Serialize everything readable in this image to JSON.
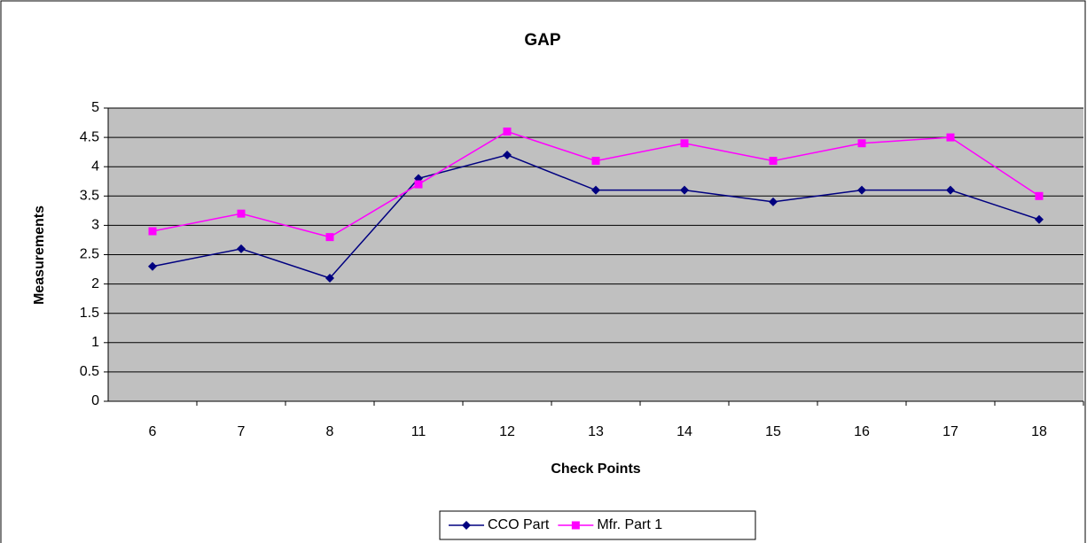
{
  "chart_data": {
    "type": "line",
    "title": "GAP",
    "x_label": "Check Points",
    "y_label": "Measurements",
    "categories": [
      "6",
      "7",
      "8",
      "11",
      "12",
      "13",
      "14",
      "15",
      "16",
      "17",
      "18"
    ],
    "series": [
      {
        "name": "CCO Part",
        "color": "#000080",
        "marker": "diamond",
        "values": [
          2.3,
          2.6,
          2.1,
          3.8,
          4.2,
          3.6,
          3.6,
          3.4,
          3.6,
          3.6,
          3.1
        ]
      },
      {
        "name": "Mfr. Part 1",
        "color": "#ff00ff",
        "marker": "square",
        "values": [
          2.9,
          3.2,
          2.8,
          3.7,
          4.6,
          4.1,
          4.4,
          4.1,
          4.4,
          4.5,
          3.5
        ]
      }
    ],
    "ylim": [
      0,
      5
    ],
    "yticks": [
      0,
      0.5,
      1,
      1.5,
      2,
      2.5,
      3,
      3.5,
      4,
      4.5,
      5
    ],
    "grid": true,
    "legend": "bottom"
  }
}
